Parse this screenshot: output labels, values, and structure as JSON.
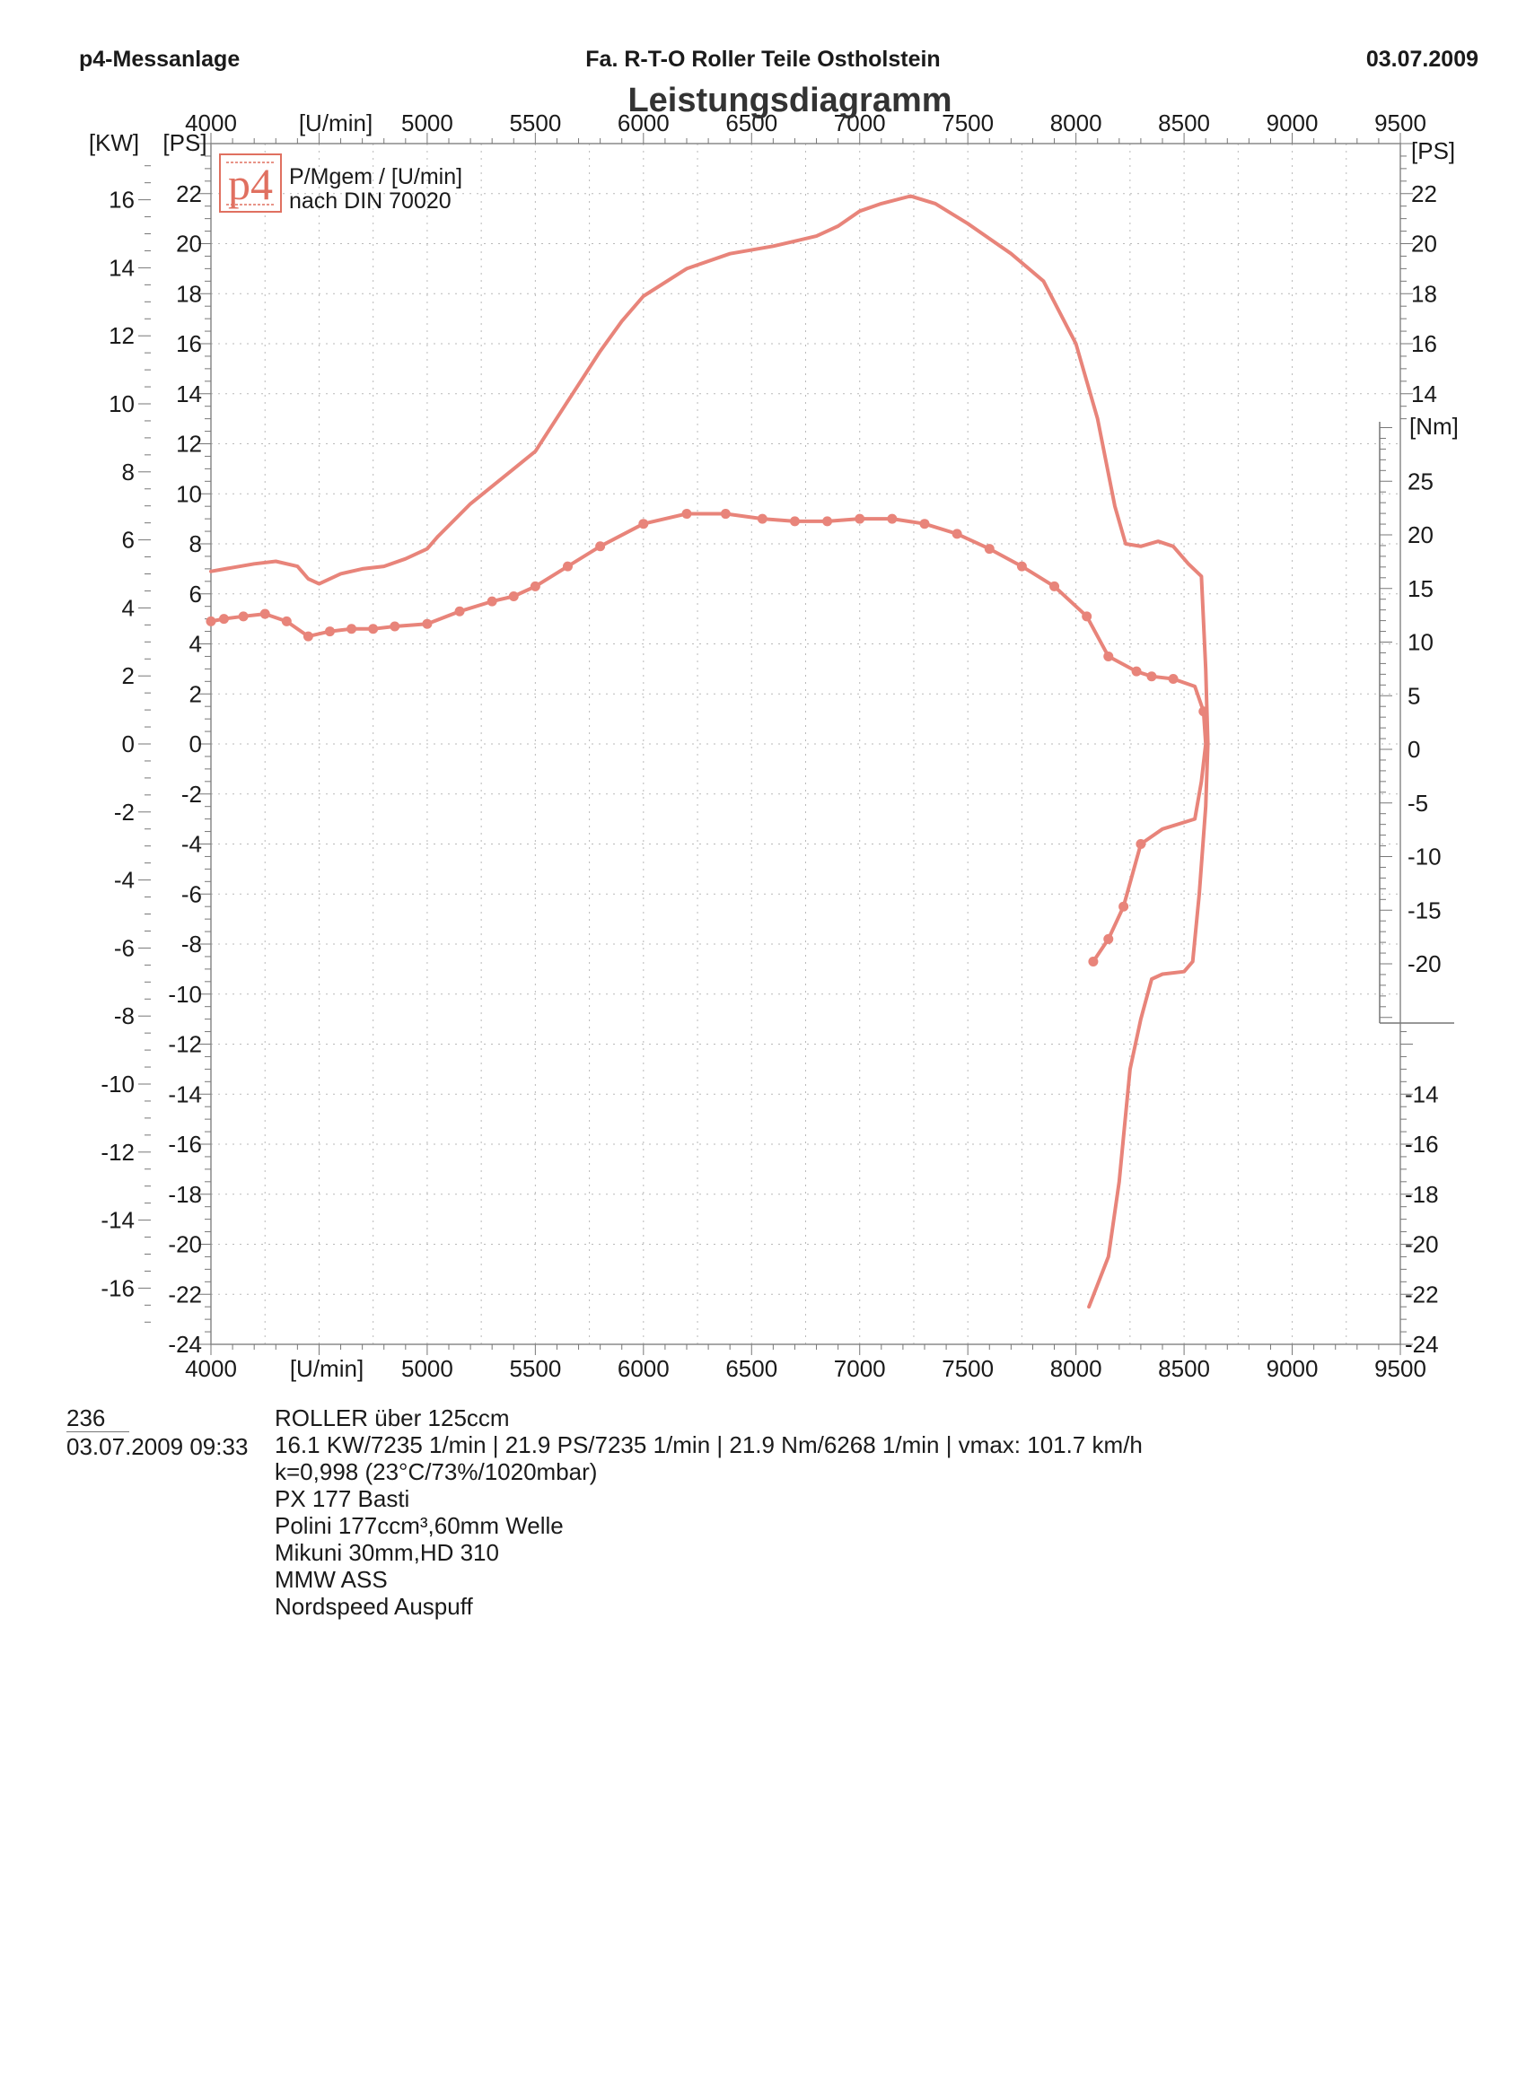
{
  "header": {
    "left": "p4-Messanlage",
    "center": "Fa. R-T-O  Roller Teile Ostholstein",
    "right": "03.07.2009"
  },
  "chart_data": {
    "type": "line",
    "title": "Leistungsdiagramm",
    "legend": [
      "P/Mgem / [U/min]",
      "nach DIN 70020"
    ],
    "logo": "p4",
    "x_unit": "[U/min]",
    "xlim": [
      4000,
      9500
    ],
    "x_ticks": [
      4000,
      5000,
      5500,
      6000,
      6500,
      7000,
      7500,
      8000,
      8500,
      9000,
      9500
    ],
    "kw_unit": "[KW]",
    "kw_ticks": [
      16,
      14,
      12,
      10,
      8,
      6,
      4,
      2,
      0,
      -2,
      -4,
      -6,
      -8,
      -10,
      -12,
      -14,
      -16
    ],
    "ps_unit": "[PS]",
    "ps_range": [
      -24,
      24
    ],
    "ps_ticks": [
      22,
      20,
      18,
      16,
      14,
      12,
      10,
      8,
      6,
      4,
      2,
      0,
      -2,
      -4,
      -6,
      -8,
      -10,
      -12,
      -14,
      -16,
      -18,
      -20,
      -22,
      -24
    ],
    "ps_right_ticks_upper": [
      22,
      20,
      18,
      16,
      14
    ],
    "ps_right_ticks_lower": [
      -14,
      -16,
      -18,
      -20,
      -22,
      -24
    ],
    "nm_unit": "[Nm]",
    "nm_ticks": [
      25,
      20,
      15,
      10,
      5,
      0,
      -5,
      -10,
      -15,
      -20
    ],
    "grid": true,
    "series": [
      {
        "color": "#e8847a",
        "marker": false,
        "points": [
          [
            4000,
            6.9
          ],
          [
            4200,
            7.2
          ],
          [
            4300,
            7.3
          ],
          [
            4400,
            7.1
          ],
          [
            4450,
            6.6
          ],
          [
            4500,
            6.4
          ],
          [
            4600,
            6.8
          ],
          [
            4700,
            7.0
          ],
          [
            4800,
            7.1
          ],
          [
            4900,
            7.4
          ],
          [
            5000,
            7.8
          ],
          [
            5050,
            8.3
          ],
          [
            5200,
            9.6
          ],
          [
            5400,
            11.0
          ],
          [
            5500,
            11.7
          ],
          [
            5650,
            13.7
          ],
          [
            5800,
            15.7
          ],
          [
            5900,
            16.9
          ],
          [
            6000,
            17.9
          ],
          [
            6200,
            19.0
          ],
          [
            6400,
            19.6
          ],
          [
            6600,
            19.9
          ],
          [
            6800,
            20.3
          ],
          [
            6900,
            20.7
          ],
          [
            7000,
            21.3
          ],
          [
            7100,
            21.6
          ],
          [
            7235,
            21.9
          ],
          [
            7350,
            21.6
          ],
          [
            7500,
            20.8
          ],
          [
            7700,
            19.6
          ],
          [
            7850,
            18.5
          ],
          [
            8000,
            16.0
          ],
          [
            8100,
            13.0
          ],
          [
            8180,
            9.5
          ],
          [
            8230,
            8.0
          ],
          [
            8300,
            7.9
          ],
          [
            8380,
            8.1
          ],
          [
            8450,
            7.9
          ],
          [
            8520,
            7.2
          ],
          [
            8580,
            6.7
          ],
          [
            8600,
            3.0
          ],
          [
            8610,
            0
          ],
          [
            8600,
            -2.5
          ],
          [
            8570,
            -6.0
          ],
          [
            8540,
            -8.7
          ],
          [
            8500,
            -9.1
          ],
          [
            8400,
            -9.2
          ],
          [
            8350,
            -9.4
          ],
          [
            8300,
            -11.0
          ],
          [
            8250,
            -13.0
          ],
          [
            8200,
            -17.5
          ],
          [
            8150,
            -20.5
          ],
          [
            8060,
            -22.5
          ]
        ]
      },
      {
        "color": "#e8847a",
        "marker": true,
        "points": [
          [
            4000,
            4.9
          ],
          [
            4060,
            5.0
          ],
          [
            4150,
            5.1
          ],
          [
            4250,
            5.2
          ],
          [
            4350,
            4.9
          ],
          [
            4450,
            4.3
          ],
          [
            4550,
            4.5
          ],
          [
            4650,
            4.6
          ],
          [
            4750,
            4.6
          ],
          [
            4850,
            4.7
          ],
          [
            5000,
            4.8
          ],
          [
            5150,
            5.3
          ],
          [
            5300,
            5.7
          ],
          [
            5400,
            5.9
          ],
          [
            5500,
            6.3
          ],
          [
            5650,
            7.1
          ],
          [
            5800,
            7.9
          ],
          [
            6000,
            8.8
          ],
          [
            6200,
            9.2
          ],
          [
            6380,
            9.2
          ],
          [
            6550,
            9.0
          ],
          [
            6700,
            8.9
          ],
          [
            6850,
            8.9
          ],
          [
            7000,
            9.0
          ],
          [
            7150,
            9.0
          ],
          [
            7300,
            8.8
          ],
          [
            7450,
            8.4
          ],
          [
            7600,
            7.8
          ],
          [
            7750,
            7.1
          ],
          [
            7900,
            6.3
          ],
          [
            8050,
            5.1
          ],
          [
            8150,
            3.5
          ],
          [
            8280,
            2.9
          ],
          [
            8350,
            2.7
          ],
          [
            8450,
            2.6
          ],
          [
            8550,
            2.3
          ],
          [
            8590,
            1.3
          ],
          [
            8600,
            0.0
          ],
          [
            8580,
            -1.5
          ],
          [
            8550,
            -3.0
          ],
          [
            8400,
            -3.4
          ],
          [
            8300,
            -4.0
          ],
          [
            8220,
            -6.5
          ],
          [
            8150,
            -7.8
          ],
          [
            8080,
            -8.7
          ]
        ],
        "marker_points": [
          [
            4000,
            4.9
          ],
          [
            4060,
            5.0
          ],
          [
            4150,
            5.1
          ],
          [
            4250,
            5.2
          ],
          [
            4350,
            4.9
          ],
          [
            4450,
            4.3
          ],
          [
            4550,
            4.5
          ],
          [
            4650,
            4.6
          ],
          [
            4750,
            4.6
          ],
          [
            4850,
            4.7
          ],
          [
            5000,
            4.8
          ],
          [
            5150,
            5.3
          ],
          [
            5300,
            5.7
          ],
          [
            5400,
            5.9
          ],
          [
            5500,
            6.3
          ],
          [
            5650,
            7.1
          ],
          [
            5800,
            7.9
          ],
          [
            6000,
            8.8
          ],
          [
            6200,
            9.2
          ],
          [
            6380,
            9.2
          ],
          [
            6550,
            9.0
          ],
          [
            6700,
            8.9
          ],
          [
            6850,
            8.9
          ],
          [
            7000,
            9.0
          ],
          [
            7150,
            9.0
          ],
          [
            7300,
            8.8
          ],
          [
            7450,
            8.4
          ],
          [
            7600,
            7.8
          ],
          [
            7750,
            7.1
          ],
          [
            7900,
            6.3
          ],
          [
            8050,
            5.1
          ],
          [
            8150,
            3.5
          ],
          [
            8280,
            2.9
          ],
          [
            8350,
            2.7
          ],
          [
            8450,
            2.6
          ],
          [
            8590,
            1.3
          ],
          [
            8300,
            -4.0
          ],
          [
            8220,
            -6.5
          ],
          [
            8150,
            -7.8
          ],
          [
            8080,
            -8.7
          ]
        ]
      }
    ]
  },
  "info": {
    "id": "236",
    "datetime": "03.07.2009  09:33",
    "lines": [
      "ROLLER über 125ccm",
      "16.1 KW/7235 1/min  |  21.9 PS/7235 1/min  |  21.9 Nm/6268 1/min | vmax: 101.7 km/h",
      "k=0,998 (23°C/73%/1020mbar)",
      "PX 177 Basti",
      "Polini 177ccm³,60mm Welle",
      "Mikuni 30mm,HD 310",
      "MMW ASS",
      "Nordspeed Auspuff"
    ]
  }
}
